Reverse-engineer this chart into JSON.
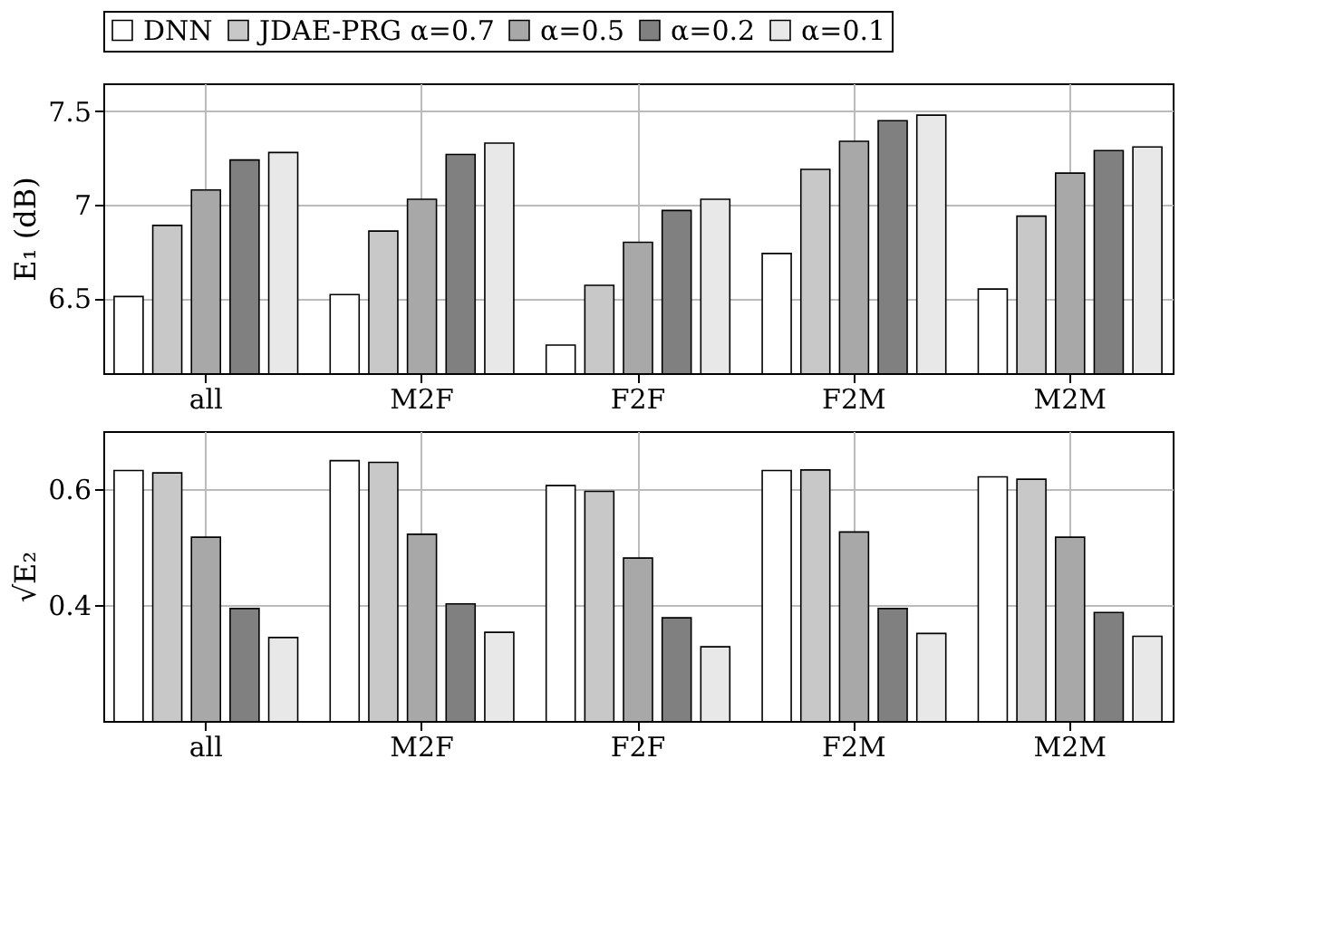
{
  "chart_data": [
    {
      "type": "bar",
      "ylabel": "E₁ (dB)",
      "categories": [
        "all",
        "M2F",
        "F2F",
        "F2M",
        "M2M"
      ],
      "ylim": [
        6.1,
        7.65
      ],
      "yticks": [
        6.5,
        7,
        7.5
      ],
      "grid": true,
      "legend": "top",
      "series": [
        {
          "name": "DNN",
          "color": "#ffffff",
          "values": [
            6.51,
            6.52,
            6.25,
            6.74,
            6.55
          ]
        },
        {
          "name": "JDAE-PRG α=0.7",
          "color": "#c8c8c8",
          "values": [
            6.89,
            6.86,
            6.57,
            7.19,
            6.94
          ]
        },
        {
          "name": "α=0.5",
          "color": "#a8a8a8",
          "values": [
            7.08,
            7.03,
            6.8,
            7.34,
            7.17
          ]
        },
        {
          "name": "α=0.2",
          "color": "#808080",
          "values": [
            7.24,
            7.27,
            6.97,
            7.45,
            7.29
          ]
        },
        {
          "name": "α=0.1",
          "color": "#e8e8e8",
          "values": [
            7.28,
            7.33,
            7.03,
            7.48,
            7.31
          ]
        }
      ]
    },
    {
      "type": "bar",
      "ylabel": "√E₂",
      "categories": [
        "all",
        "M2F",
        "F2F",
        "F2M",
        "M2M"
      ],
      "ylim": [
        0.2,
        0.7
      ],
      "yticks": [
        0.4,
        0.6
      ],
      "grid": true,
      "series": [
        {
          "color": "#ffffff",
          "values": [
            0.632,
            0.649,
            0.606,
            0.632,
            0.621
          ]
        },
        {
          "color": "#c8c8c8",
          "values": [
            0.628,
            0.646,
            0.596,
            0.633,
            0.617
          ]
        },
        {
          "color": "#a8a8a8",
          "values": [
            0.517,
            0.522,
            0.481,
            0.526,
            0.517
          ]
        },
        {
          "color": "#808080",
          "values": [
            0.394,
            0.402,
            0.378,
            0.394,
            0.387
          ]
        },
        {
          "color": "#e8e8e8",
          "values": [
            0.344,
            0.353,
            0.328,
            0.351,
            0.346
          ]
        }
      ]
    }
  ]
}
